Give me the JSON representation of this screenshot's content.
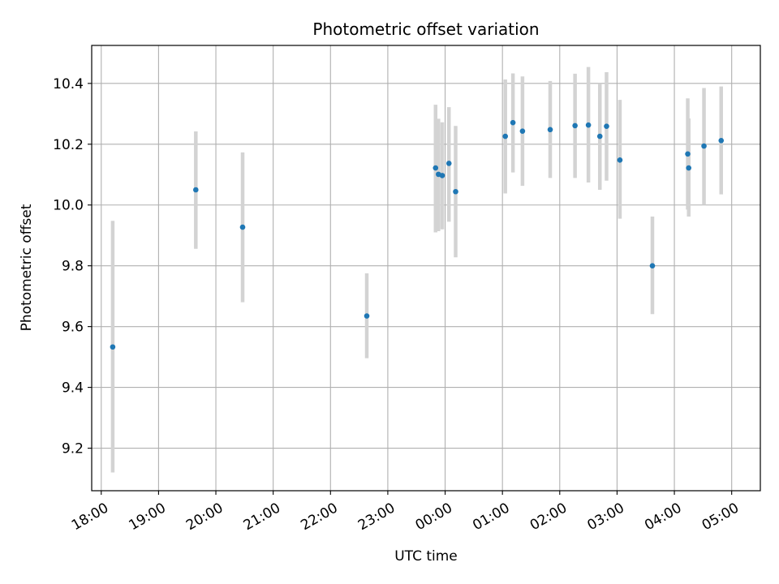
{
  "chart_data": {
    "type": "scatter",
    "title": "Photometric offset variation",
    "xlabel": "UTC time",
    "ylabel": "Photometric offset",
    "xlim": [
      "17:50",
      "05:30"
    ],
    "ylim": [
      9.06,
      10.525
    ],
    "x_ticks": [
      "18:00",
      "19:00",
      "20:00",
      "21:00",
      "22:00",
      "23:00",
      "00:00",
      "01:00",
      "02:00",
      "03:00",
      "04:00",
      "05:00"
    ],
    "y_ticks": [
      "9.2",
      "9.4",
      "9.6",
      "9.8",
      "10.0",
      "10.2",
      "10.4"
    ],
    "grid": true,
    "marker_color": "#1f77b4",
    "errorbar_color": "#d3d3d3",
    "points": [
      {
        "time": "18:12",
        "y": 9.533,
        "err_low": 9.12,
        "err_high": 9.948
      },
      {
        "time": "19:39",
        "y": 10.05,
        "err_low": 9.856,
        "err_high": 10.242
      },
      {
        "time": "20:28",
        "y": 9.927,
        "err_low": 9.68,
        "err_high": 10.173
      },
      {
        "time": "22:38",
        "y": 9.635,
        "err_low": 9.496,
        "err_high": 9.775
      },
      {
        "time": "23:50",
        "y": 10.122,
        "err_low": 9.91,
        "err_high": 10.33
      },
      {
        "time": "23:53",
        "y": 10.101,
        "err_low": 9.914,
        "err_high": 10.284
      },
      {
        "time": "23:57",
        "y": 10.097,
        "err_low": 9.92,
        "err_high": 10.272
      },
      {
        "time": "00:04",
        "y": 10.137,
        "err_low": 9.945,
        "err_high": 10.322
      },
      {
        "time": "00:11",
        "y": 10.044,
        "err_low": 9.828,
        "err_high": 10.26
      },
      {
        "time": "01:03",
        "y": 10.226,
        "err_low": 10.038,
        "err_high": 10.413
      },
      {
        "time": "01:11",
        "y": 10.271,
        "err_low": 10.107,
        "err_high": 10.433
      },
      {
        "time": "01:21",
        "y": 10.243,
        "err_low": 10.063,
        "err_high": 10.423
      },
      {
        "time": "01:50",
        "y": 10.248,
        "err_low": 10.089,
        "err_high": 10.408
      },
      {
        "time": "02:16",
        "y": 10.261,
        "err_low": 10.089,
        "err_high": 10.432
      },
      {
        "time": "02:30",
        "y": 10.263,
        "err_low": 10.074,
        "err_high": 10.454
      },
      {
        "time": "02:42",
        "y": 10.226,
        "err_low": 10.05,
        "err_high": 10.4
      },
      {
        "time": "02:49",
        "y": 10.259,
        "err_low": 10.08,
        "err_high": 10.437
      },
      {
        "time": "03:03",
        "y": 10.148,
        "err_low": 9.955,
        "err_high": 10.346
      },
      {
        "time": "03:37",
        "y": 9.8,
        "err_low": 9.641,
        "err_high": 9.962
      },
      {
        "time": "04:14",
        "y": 10.168,
        "err_low": 9.985,
        "err_high": 10.351
      },
      {
        "time": "04:15",
        "y": 10.122,
        "err_low": 9.962,
        "err_high": 10.285
      },
      {
        "time": "04:31",
        "y": 10.194,
        "err_low": 10.0,
        "err_high": 10.385
      },
      {
        "time": "04:49",
        "y": 10.212,
        "err_low": 10.035,
        "err_high": 10.39
      }
    ]
  }
}
